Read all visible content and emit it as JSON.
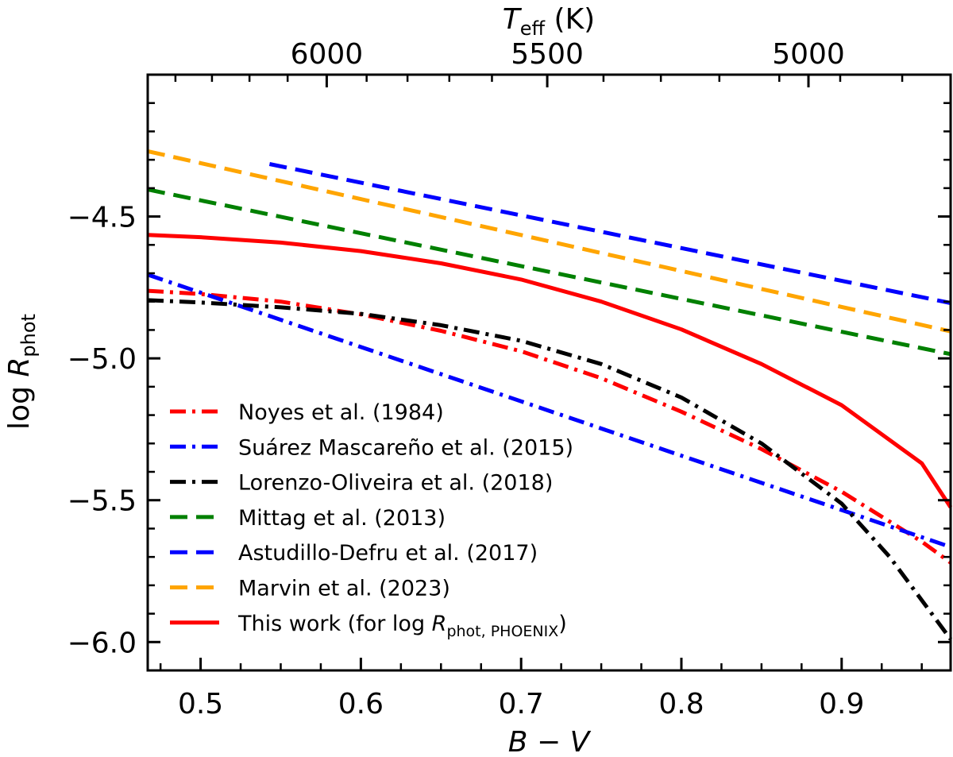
{
  "chart_data": {
    "type": "line",
    "xlabel_main": "B",
    "xlabel_op": " − ",
    "xlabel_end": "V",
    "ylabel_pre": "log ",
    "ylabel_main": "R",
    "ylabel_sub": "phot",
    "top_xlabel_main": "T",
    "top_xlabel_sub": "eff",
    "top_xlabel_unit": " (K)",
    "xlim": [
      0.467,
      0.968
    ],
    "ylim": [
      -6.1,
      -4.0
    ],
    "x_ticks": [
      0.5,
      0.6,
      0.7,
      0.8,
      0.9
    ],
    "x_tick_labels": [
      "0.5",
      "0.6",
      "0.7",
      "0.8",
      "0.9"
    ],
    "y_ticks": [
      -4.5,
      -5.0,
      -5.5,
      -6.0
    ],
    "y_tick_labels": [
      "−4.5",
      "−5.0",
      "−5.5",
      "−6.0"
    ],
    "top_ticks": [
      {
        "label": "6000",
        "bv": 0.5787
      },
      {
        "label": "5500",
        "bv": 0.7163
      },
      {
        "label": "5000",
        "bv": 0.8793
      }
    ],
    "top_minor_bv": [
      0.4843,
      0.5071,
      0.5305,
      0.5543,
      0.6036,
      0.6291,
      0.6552,
      0.6818,
      0.7514,
      0.7872,
      0.8237,
      0.8611,
      0.8991,
      0.9378
    ],
    "series": [
      {
        "name": "Noyes et al. (1984)",
        "color": "#ff0000",
        "dash": "dashdot",
        "x": [
          0.467,
          0.5,
          0.55,
          0.6,
          0.65,
          0.7,
          0.75,
          0.8,
          0.85,
          0.9,
          0.95,
          0.968
        ],
        "y": [
          -4.762,
          -4.773,
          -4.8,
          -4.845,
          -4.903,
          -4.975,
          -5.07,
          -5.188,
          -5.32,
          -5.47,
          -5.646,
          -5.72
        ]
      },
      {
        "name": "Suárez Mascareño et al. (2015)",
        "color": "#0000ff",
        "dash": "dashdot",
        "x": [
          0.467,
          0.968
        ],
        "y": [
          -4.705,
          -5.665
        ]
      },
      {
        "name": "Lorenzo-Oliveira et al. (2018)",
        "color": "#000000",
        "dash": "dashdot",
        "x": [
          0.467,
          0.5,
          0.55,
          0.6,
          0.65,
          0.7,
          0.75,
          0.8,
          0.85,
          0.9,
          0.93,
          0.968
        ],
        "y": [
          -4.795,
          -4.803,
          -4.82,
          -4.843,
          -4.883,
          -4.938,
          -5.02,
          -5.138,
          -5.3,
          -5.512,
          -5.7,
          -5.99
        ]
      },
      {
        "name": "Mittag et al. (2013)",
        "color": "#008000",
        "dash": "dashed",
        "x": [
          0.467,
          0.968
        ],
        "y": [
          -4.405,
          -4.985
        ]
      },
      {
        "name": "Astudillo-Defru et al. (2017)",
        "color": "#0000ff",
        "dash": "dashed",
        "x": [
          0.543,
          0.968
        ],
        "y": [
          -4.315,
          -4.805
        ]
      },
      {
        "name": "Marvin et al. (2023)",
        "color": "#ffa500",
        "dash": "dashed",
        "x": [
          0.467,
          0.968
        ],
        "y": [
          -4.27,
          -4.905
        ]
      },
      {
        "name": "This work (for log R",
        "name_sub": "phot, PHOENIX",
        "name_tail": ")",
        "color": "#ff0000",
        "dash": "solid",
        "x": [
          0.467,
          0.5,
          0.55,
          0.6,
          0.65,
          0.7,
          0.75,
          0.8,
          0.85,
          0.9,
          0.95,
          0.968
        ],
        "y": [
          -4.565,
          -4.573,
          -4.592,
          -4.622,
          -4.665,
          -4.722,
          -4.8,
          -4.898,
          -5.02,
          -5.165,
          -5.37,
          -5.525
        ]
      }
    ]
  }
}
